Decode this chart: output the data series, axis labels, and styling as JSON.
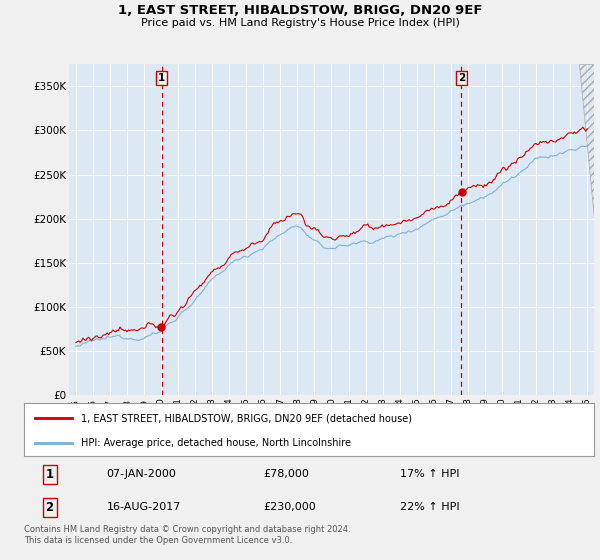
{
  "title": "1, EAST STREET, HIBALDSTOW, BRIGG, DN20 9EF",
  "subtitle": "Price paid vs. HM Land Registry's House Price Index (HPI)",
  "ylim": [
    0,
    375000
  ],
  "yticks": [
    0,
    50000,
    100000,
    150000,
    200000,
    250000,
    300000,
    350000
  ],
  "ytick_labels": [
    "£0",
    "£50K",
    "£100K",
    "£150K",
    "£200K",
    "£250K",
    "£300K",
    "£350K"
  ],
  "line1_color": "#cc0000",
  "line2_color": "#7bafd4",
  "chart_bg": "#dce9f5",
  "fig_bg": "#f0f0f0",
  "sale1_year": 2000.04,
  "sale1_price": 78000,
  "sale1_label": "1",
  "sale2_year": 2017.62,
  "sale2_price": 230000,
  "sale2_label": "2",
  "legend1": "1, EAST STREET, HIBALDSTOW, BRIGG, DN20 9EF (detached house)",
  "legend2": "HPI: Average price, detached house, North Lincolnshire",
  "table_row1_num": "1",
  "table_row1_date": "07-JAN-2000",
  "table_row1_price": "£78,000",
  "table_row1_hpi": "17% ↑ HPI",
  "table_row2_num": "2",
  "table_row2_date": "16-AUG-2017",
  "table_row2_price": "£230,000",
  "table_row2_hpi": "22% ↑ HPI",
  "footnote1": "Contains HM Land Registry data © Crown copyright and database right 2024.",
  "footnote2": "This data is licensed under the Open Government Licence v3.0.",
  "xstart": 1995,
  "xend": 2025
}
